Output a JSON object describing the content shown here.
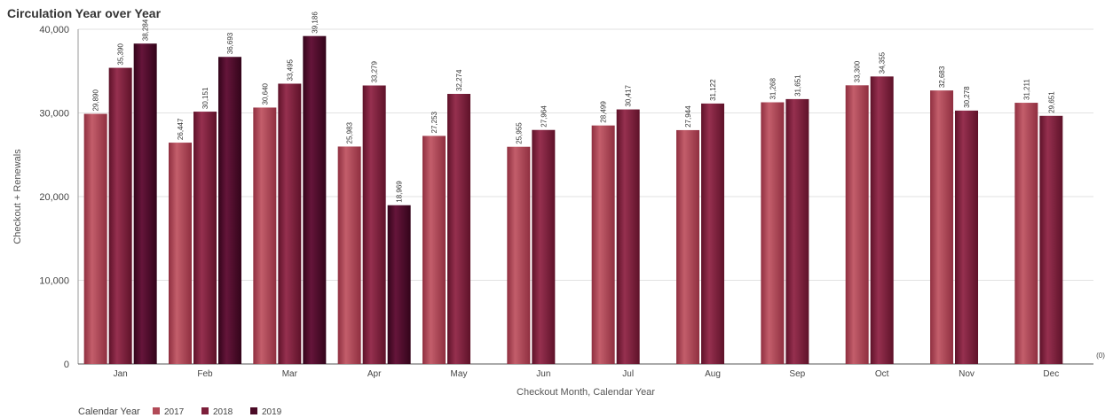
{
  "chart_data": {
    "type": "bar",
    "title": "Circulation Year over Year",
    "xlabel": "Checkout Month, Calendar Year",
    "ylabel": "Checkout + Renewals",
    "ylim": [
      0,
      40000
    ],
    "yticks": [
      0,
      10000,
      20000,
      30000,
      40000
    ],
    "ytick_labels": [
      "0",
      "10,000",
      "20,000",
      "30,000",
      "40,000"
    ],
    "grid": true,
    "legend_position": "bottom-left",
    "legend_title": "Calendar Year",
    "corner_note": "(0)",
    "categories": [
      "Jan",
      "Feb",
      "Mar",
      "Apr",
      "May",
      "Jun",
      "Jul",
      "Aug",
      "Sep",
      "Oct",
      "Nov",
      "Dec"
    ],
    "series": [
      {
        "name": "2017",
        "color": "#b24a57",
        "values": [
          29890,
          26447,
          30640,
          25983,
          27253,
          25955,
          28499,
          27944,
          31268,
          33300,
          32683,
          31211
        ],
        "labels": [
          "29,890",
          "26,447",
          "30,640",
          "25,983",
          "27,253",
          "25,955",
          "28,499",
          "27,944",
          "31,268",
          "33,300",
          "32,683",
          "31,211"
        ]
      },
      {
        "name": "2018",
        "color": "#7c1e3a",
        "values": [
          35390,
          30151,
          33495,
          33279,
          32274,
          27964,
          30417,
          31122,
          31651,
          34355,
          30278,
          29651
        ],
        "labels": [
          "35,390",
          "30,151",
          "33,495",
          "33,279",
          "32,274",
          "27,964",
          "30,417",
          "31,122",
          "31,651",
          "34,355",
          "30,278",
          "29,651"
        ]
      },
      {
        "name": "2019",
        "color": "#4a0a26",
        "values": [
          38284,
          36693,
          39186,
          18969,
          null,
          null,
          null,
          null,
          null,
          null,
          null,
          null
        ],
        "labels": [
          "38,284",
          "36,693",
          "39,186",
          "18,969",
          null,
          null,
          null,
          null,
          null,
          null,
          null,
          null
        ]
      }
    ]
  }
}
